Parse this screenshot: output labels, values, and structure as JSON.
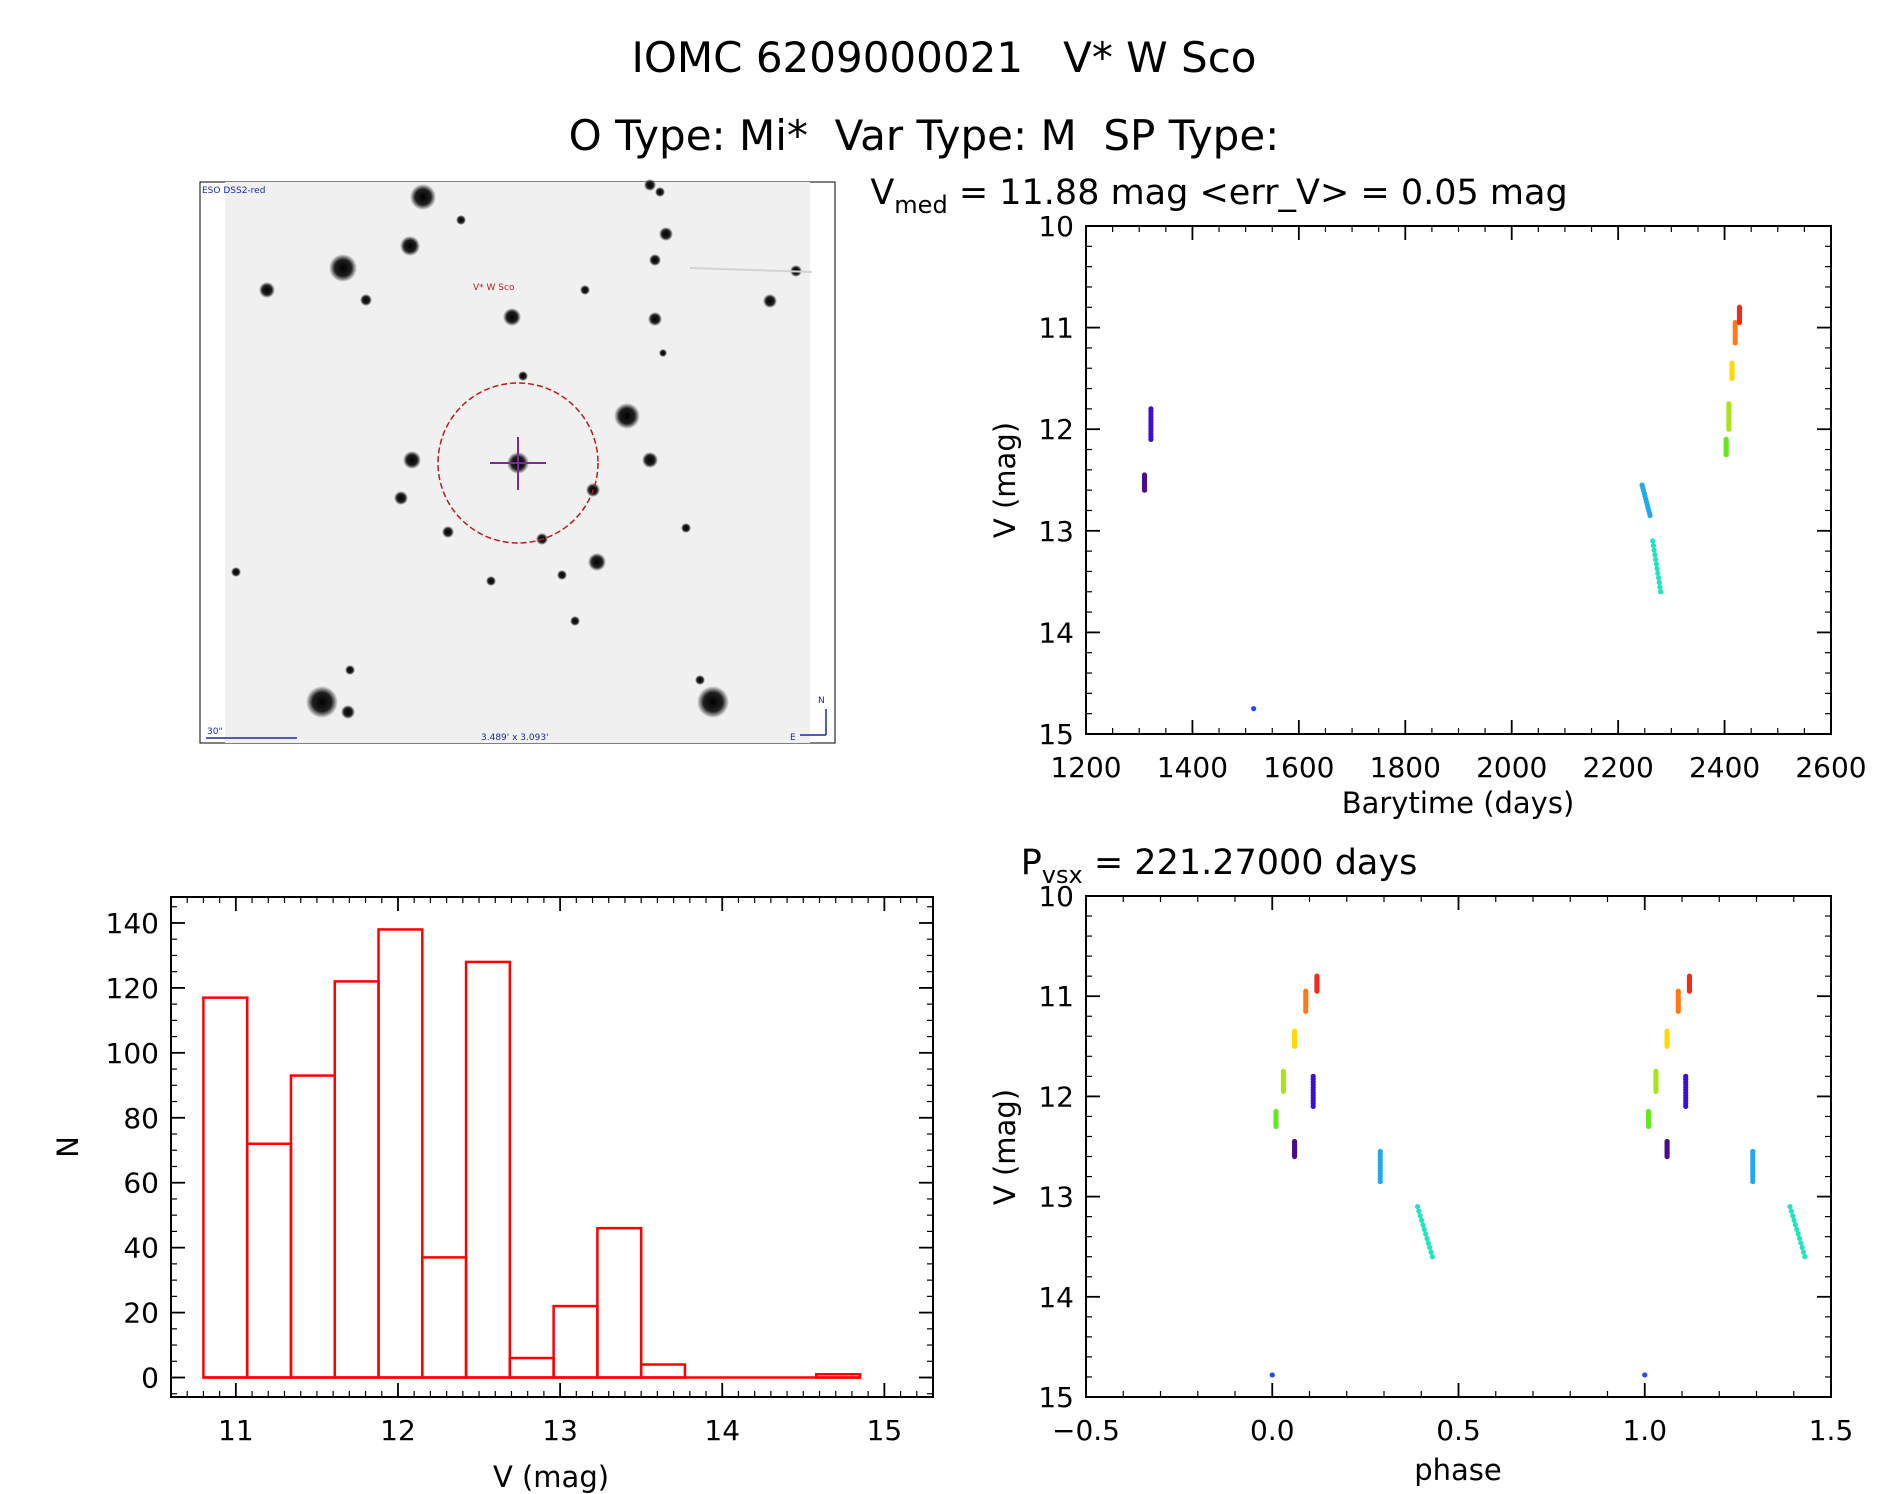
{
  "header": {
    "title": "IOMC 6209000021   V* W Sco",
    "types": "O Type: Mi*  Var Type: M  SP Type:"
  },
  "finder": {
    "survey_label": "ESO DSS2-red",
    "target_label": "V* W Sco",
    "scale_label": "30\"",
    "field_label": "3.489' x 3.093'",
    "north_label": "N",
    "east_label": "E"
  },
  "chart_data": [
    {
      "id": "lightcurve",
      "type": "scatter",
      "title": "V_med = 11.88 mag <err_V> = 0.05 mag",
      "title_main": "V",
      "title_sub": "med",
      "title_rest": " = 11.88 mag <err_V> = 0.05 mag",
      "xlabel": "Barytime (days)",
      "ylabel": "V (mag)",
      "xlim": [
        1200,
        2600
      ],
      "ylim": [
        15,
        10
      ],
      "xticks": [
        "1200",
        "1400",
        "1600",
        "1800",
        "2000",
        "2200",
        "2400",
        "2600"
      ],
      "yticks": [
        "10",
        "11",
        "12",
        "13",
        "14",
        "15"
      ],
      "groups": [
        {
          "color": "#4b0c8c",
          "x": 1310,
          "y": [
            12.45,
            12.6
          ]
        },
        {
          "color": "#3c10d2",
          "x": 1322,
          "y": [
            11.8,
            12.1
          ]
        },
        {
          "color": "#1f4bff",
          "x": 1515,
          "y": [
            14.75,
            14.75
          ]
        },
        {
          "color": "#21a8ef",
          "x": 2245,
          "y": [
            12.55,
            12.85
          ]
        },
        {
          "color": "#20e3c0",
          "x": 2265,
          "y": [
            13.1,
            13.6
          ]
        },
        {
          "color": "#66e61e",
          "x": 2403,
          "y": [
            12.1,
            12.25
          ]
        },
        {
          "color": "#a9e41b",
          "x": 2408,
          "y": [
            11.75,
            12.0
          ]
        },
        {
          "color": "#ffd900",
          "x": 2414,
          "y": [
            11.35,
            11.5
          ]
        },
        {
          "color": "#ff7a12",
          "x": 2420,
          "y": [
            10.95,
            11.15
          ]
        },
        {
          "color": "#f42a19",
          "x": 2428,
          "y": [
            10.8,
            10.95
          ]
        }
      ]
    },
    {
      "id": "phased",
      "type": "scatter",
      "title": "P_vsx = 221.27000 days",
      "title_main": "P",
      "title_sub": "vsx",
      "title_rest": " = 221.27000 days",
      "xlabel": "phase",
      "ylabel": "V (mag)",
      "xlim": [
        -0.5,
        1.5
      ],
      "ylim": [
        15,
        10
      ],
      "xticks": [
        "−0.5",
        "0.0",
        "0.5",
        "1.0",
        "1.5"
      ],
      "yticks": [
        "10",
        "11",
        "12",
        "13",
        "14",
        "15"
      ],
      "groups": [
        {
          "color": "#1f4bff",
          "phase": 0.0,
          "y": [
            14.78,
            14.78
          ]
        },
        {
          "color": "#66e61e",
          "phase": 0.01,
          "y": [
            12.15,
            12.3
          ]
        },
        {
          "color": "#a9e41b",
          "phase": 0.03,
          "y": [
            11.75,
            11.95
          ]
        },
        {
          "color": "#ffd900",
          "phase": 0.06,
          "y": [
            11.35,
            11.5
          ]
        },
        {
          "color": "#4b0c8c",
          "phase": 0.06,
          "y": [
            12.45,
            12.6
          ]
        },
        {
          "color": "#ff7a12",
          "phase": 0.09,
          "y": [
            10.95,
            11.15
          ]
        },
        {
          "color": "#3c10d2",
          "phase": 0.11,
          "y": [
            11.8,
            12.1
          ]
        },
        {
          "color": "#f42a19",
          "phase": 0.12,
          "y": [
            10.8,
            10.95
          ]
        },
        {
          "color": "#21a8ef",
          "phase": 0.29,
          "y": [
            12.55,
            12.85
          ]
        },
        {
          "color": "#20e3c0",
          "phase": 0.39,
          "y": [
            13.1,
            13.6
          ]
        }
      ]
    },
    {
      "id": "histogram",
      "type": "bar",
      "title": "",
      "xlabel": "V (mag)",
      "ylabel": "N",
      "xlim": [
        10.6,
        15.3
      ],
      "ylim": [
        0,
        140
      ],
      "xticks": [
        "11",
        "12",
        "13",
        "14",
        "15"
      ],
      "yticks": [
        "0",
        "20",
        "40",
        "60",
        "80",
        "100",
        "120",
        "140"
      ],
      "bin_width": 0.27,
      "bin_left": [
        10.8,
        11.07,
        11.34,
        11.61,
        11.88,
        12.15,
        12.42,
        12.69,
        12.96,
        13.23,
        13.5,
        13.77,
        14.04,
        14.31,
        14.58
      ],
      "values": [
        117,
        72,
        93,
        122,
        138,
        37,
        128,
        6,
        22,
        46,
        4,
        0,
        0,
        0,
        1
      ],
      "color": "#ff0000"
    }
  ]
}
